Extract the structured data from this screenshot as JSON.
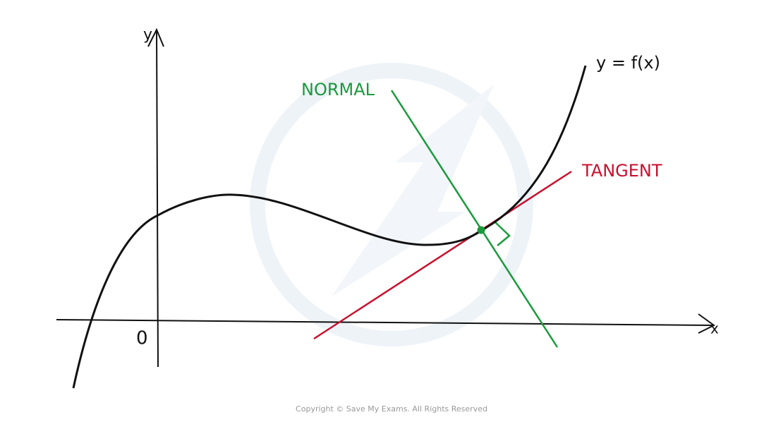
{
  "labels": {
    "y_axis": "y",
    "x_axis": "x",
    "origin": "0",
    "curve": "y = f(x)",
    "normal": "NORMAL",
    "tangent": "TANGENT"
  },
  "footer": "Copyright © Save My Exams. All Rights Reserved"
}
